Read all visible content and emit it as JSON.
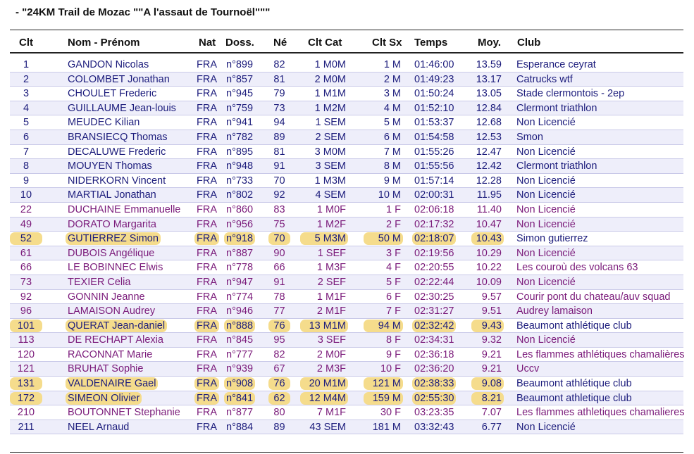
{
  "title": "- \"24KM Trail de Mozac \"\"A l'assaut de Tournoël\"\"\"",
  "headers": {
    "rank": "Clt",
    "name": "Nom - Prénom",
    "nat": "Nat",
    "doss": "Doss.",
    "born": "Né",
    "cat": "Clt Cat",
    "sx": "Clt Sx",
    "time": "Temps",
    "avg": "Moy.",
    "club": "Club"
  },
  "colors": {
    "male": "#1c1c7c",
    "female": "#7a1a7a",
    "highlight": "#f5dc8c",
    "alt_row": "#eeeefa"
  },
  "rows": [
    {
      "rank": "1",
      "name": "GANDON Nicolas",
      "nat": "FRA",
      "doss": "n°899",
      "born": "82",
      "cat": "1 M0M",
      "sx": "1 M",
      "time": "01:46:00",
      "avg": "13.59",
      "club": "Esperance ceyrat",
      "sex": "M",
      "highlight": false
    },
    {
      "rank": "2",
      "name": "COLOMBET Jonathan",
      "nat": "FRA",
      "doss": "n°857",
      "born": "81",
      "cat": "2 M0M",
      "sx": "2 M",
      "time": "01:49:23",
      "avg": "13.17",
      "club": "Catrucks wtf",
      "sex": "M",
      "highlight": false
    },
    {
      "rank": "3",
      "name": "CHOULET Frederic",
      "nat": "FRA",
      "doss": "n°945",
      "born": "79",
      "cat": "1 M1M",
      "sx": "3 M",
      "time": "01:50:24",
      "avg": "13.05",
      "club": "Stade clermontois - 2ep",
      "sex": "M",
      "highlight": false
    },
    {
      "rank": "4",
      "name": "GUILLAUME Jean-louis",
      "nat": "FRA",
      "doss": "n°759",
      "born": "73",
      "cat": "1 M2M",
      "sx": "4 M",
      "time": "01:52:10",
      "avg": "12.84",
      "club": "Clermont triathlon",
      "sex": "M",
      "highlight": false
    },
    {
      "rank": "5",
      "name": "MEUDEC Kilian",
      "nat": "FRA",
      "doss": "n°941",
      "born": "94",
      "cat": "1 SEM",
      "sx": "5 M",
      "time": "01:53:37",
      "avg": "12.68",
      "club": "Non Licencié",
      "sex": "M",
      "highlight": false
    },
    {
      "rank": "6",
      "name": "BRANSIECQ Thomas",
      "nat": "FRA",
      "doss": "n°782",
      "born": "89",
      "cat": "2 SEM",
      "sx": "6 M",
      "time": "01:54:58",
      "avg": "12.53",
      "club": "Smon",
      "sex": "M",
      "highlight": false
    },
    {
      "rank": "7",
      "name": "DECALUWE Frederic",
      "nat": "FRA",
      "doss": "n°895",
      "born": "81",
      "cat": "3 M0M",
      "sx": "7 M",
      "time": "01:55:26",
      "avg": "12.47",
      "club": "Non Licencié",
      "sex": "M",
      "highlight": false
    },
    {
      "rank": "8",
      "name": "MOUYEN Thomas",
      "nat": "FRA",
      "doss": "n°948",
      "born": "91",
      "cat": "3 SEM",
      "sx": "8 M",
      "time": "01:55:56",
      "avg": "12.42",
      "club": "Clermont triathlon",
      "sex": "M",
      "highlight": false
    },
    {
      "rank": "9",
      "name": "NIDERKORN Vincent",
      "nat": "FRA",
      "doss": "n°733",
      "born": "70",
      "cat": "1 M3M",
      "sx": "9 M",
      "time": "01:57:14",
      "avg": "12.28",
      "club": "Non Licencié",
      "sex": "M",
      "highlight": false
    },
    {
      "rank": "10",
      "name": "MARTIAL Jonathan",
      "nat": "FRA",
      "doss": "n°802",
      "born": "92",
      "cat": "4 SEM",
      "sx": "10 M",
      "time": "02:00:31",
      "avg": "11.95",
      "club": "Non Licencié",
      "sex": "M",
      "highlight": false
    },
    {
      "rank": "22",
      "name": "DUCHAINE Emmanuelle",
      "nat": "FRA",
      "doss": "n°860",
      "born": "83",
      "cat": "1 M0F",
      "sx": "1 F",
      "time": "02:06:18",
      "avg": "11.40",
      "club": "Non Licencié",
      "sex": "F",
      "highlight": false
    },
    {
      "rank": "49",
      "name": "DORATO Margarita",
      "nat": "FRA",
      "doss": "n°956",
      "born": "75",
      "cat": "1 M2F",
      "sx": "2 F",
      "time": "02:17:32",
      "avg": "10.47",
      "club": "Non Licencié",
      "sex": "F",
      "highlight": false
    },
    {
      "rank": "52",
      "name": "GUTIERREZ Simon",
      "nat": "FRA",
      "doss": "n°918",
      "born": "70",
      "cat": "5 M3M",
      "sx": "50 M",
      "time": "02:18:07",
      "avg": "10.43",
      "club": "Simon gutierrez",
      "sex": "M",
      "highlight": true
    },
    {
      "rank": "61",
      "name": "DUBOIS Angélique",
      "nat": "FRA",
      "doss": "n°887",
      "born": "90",
      "cat": "1 SEF",
      "sx": "3 F",
      "time": "02:19:56",
      "avg": "10.29",
      "club": "Non Licencié",
      "sex": "F",
      "highlight": false
    },
    {
      "rank": "66",
      "name": "LE BOBINNEC Elwis",
      "nat": "FRA",
      "doss": "n°778",
      "born": "66",
      "cat": "1 M3F",
      "sx": "4 F",
      "time": "02:20:55",
      "avg": "10.22",
      "club": "Les couroù des volcans 63",
      "sex": "F",
      "highlight": false
    },
    {
      "rank": "73",
      "name": "TEXIER Celia",
      "nat": "FRA",
      "doss": "n°947",
      "born": "91",
      "cat": "2 SEF",
      "sx": "5 F",
      "time": "02:22:44",
      "avg": "10.09",
      "club": "Non Licencié",
      "sex": "F",
      "highlight": false
    },
    {
      "rank": "92",
      "name": "GONNIN Jeanne",
      "nat": "FRA",
      "doss": "n°774",
      "born": "78",
      "cat": "1 M1F",
      "sx": "6 F",
      "time": "02:30:25",
      "avg": "9.57",
      "club": "Courir pont du chateau/auv squad",
      "sex": "F",
      "highlight": false
    },
    {
      "rank": "96",
      "name": "LAMAISON Audrey",
      "nat": "FRA",
      "doss": "n°946",
      "born": "77",
      "cat": "2 M1F",
      "sx": "7 F",
      "time": "02:31:27",
      "avg": "9.51",
      "club": "Audrey lamaison",
      "sex": "F",
      "highlight": false
    },
    {
      "rank": "101",
      "name": "QUERAT Jean-daniel",
      "nat": "FRA",
      "doss": "n°888",
      "born": "76",
      "cat": "13 M1M",
      "sx": "94 M",
      "time": "02:32:42",
      "avg": "9.43",
      "club": "Beaumont athlétique club",
      "sex": "M",
      "highlight": true
    },
    {
      "rank": "113",
      "name": "DE RECHAPT Alexia",
      "nat": "FRA",
      "doss": "n°845",
      "born": "95",
      "cat": "3 SEF",
      "sx": "8 F",
      "time": "02:34:31",
      "avg": "9.32",
      "club": "Non Licencié",
      "sex": "F",
      "highlight": false
    },
    {
      "rank": "120",
      "name": "RACONNAT Marie",
      "nat": "FRA",
      "doss": "n°777",
      "born": "82",
      "cat": "2 M0F",
      "sx": "9 F",
      "time": "02:36:18",
      "avg": "9.21",
      "club": "Les flammes athlétiques chamalières",
      "sex": "F",
      "highlight": false
    },
    {
      "rank": "121",
      "name": "BRUHAT Sophie",
      "nat": "FRA",
      "doss": "n°939",
      "born": "67",
      "cat": "2 M3F",
      "sx": "10 F",
      "time": "02:36:20",
      "avg": "9.21",
      "club": "Uccv",
      "sex": "F",
      "highlight": false
    },
    {
      "rank": "131",
      "name": "VALDENAIRE Gael",
      "nat": "FRA",
      "doss": "n°908",
      "born": "76",
      "cat": "20 M1M",
      "sx": "121 M",
      "time": "02:38:33",
      "avg": "9.08",
      "club": "Beaumont athlétique club",
      "sex": "M",
      "highlight": true
    },
    {
      "rank": "172",
      "name": "SIMEON Olivier",
      "nat": "FRA",
      "doss": "n°841",
      "born": "62",
      "cat": "12 M4M",
      "sx": "159 M",
      "time": "02:55:30",
      "avg": "8.21",
      "club": "Beaumont athletique club",
      "sex": "M",
      "highlight": true
    },
    {
      "rank": "210",
      "name": "BOUTONNET Stephanie",
      "nat": "FRA",
      "doss": "n°877",
      "born": "80",
      "cat": "7 M1F",
      "sx": "30 F",
      "time": "03:23:35",
      "avg": "7.07",
      "club": "Les flammes athletiques chamalieres",
      "sex": "F",
      "highlight": false
    },
    {
      "rank": "211",
      "name": "NEEL Arnaud",
      "nat": "FRA",
      "doss": "n°884",
      "born": "89",
      "cat": "43 SEM",
      "sx": "181 M",
      "time": "03:32:43",
      "avg": "6.77",
      "club": "Non Licencié",
      "sex": "M",
      "highlight": false
    }
  ]
}
